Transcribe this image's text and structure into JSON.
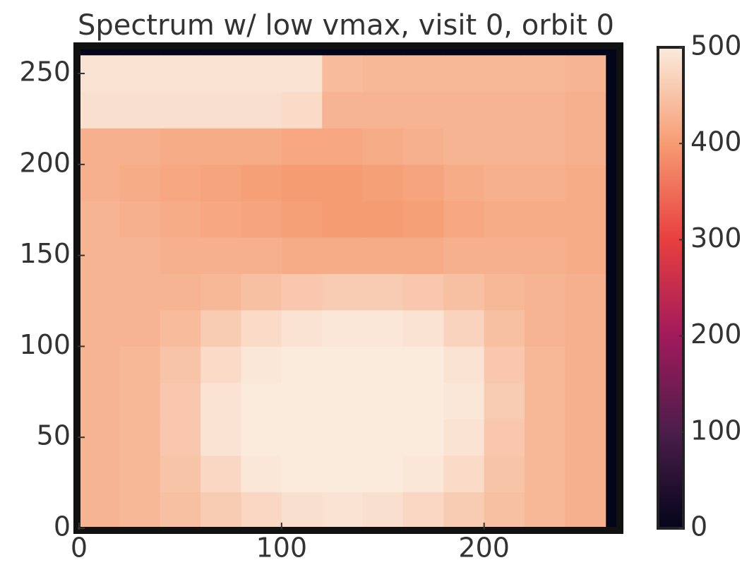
{
  "chart_data": {
    "type": "heatmap",
    "title": "Spectrum w/ low vmax, visit 0, orbit 0",
    "x": [
      10,
      30,
      50,
      70,
      90,
      110,
      130,
      150,
      170,
      190,
      210,
      230,
      250
    ],
    "y": [
      10,
      30,
      50,
      70,
      90,
      110,
      130,
      150,
      170,
      190,
      210,
      230,
      250
    ],
    "values": [
      [
        430,
        435,
        445,
        460,
        475,
        485,
        490,
        485,
        475,
        460,
        445,
        435,
        425
      ],
      [
        430,
        435,
        450,
        475,
        495,
        500,
        500,
        500,
        495,
        480,
        450,
        435,
        425
      ],
      [
        430,
        435,
        455,
        490,
        500,
        500,
        500,
        500,
        500,
        490,
        455,
        435,
        425
      ],
      [
        430,
        435,
        455,
        490,
        500,
        500,
        500,
        500,
        500,
        495,
        460,
        435,
        425
      ],
      [
        430,
        435,
        450,
        480,
        495,
        500,
        500,
        500,
        500,
        490,
        455,
        435,
        425
      ],
      [
        430,
        430,
        440,
        460,
        480,
        490,
        495,
        495,
        490,
        470,
        445,
        430,
        425
      ],
      [
        430,
        430,
        430,
        435,
        445,
        455,
        460,
        460,
        455,
        445,
        435,
        430,
        425
      ],
      [
        430,
        430,
        425,
        425,
        425,
        420,
        420,
        420,
        420,
        425,
        425,
        425,
        420
      ],
      [
        430,
        425,
        420,
        415,
        410,
        405,
        400,
        400,
        405,
        415,
        420,
        420,
        420
      ],
      [
        425,
        420,
        415,
        410,
        405,
        400,
        400,
        405,
        410,
        420,
        425,
        425,
        420
      ],
      [
        425,
        425,
        420,
        420,
        420,
        415,
        415,
        420,
        425,
        430,
        430,
        430,
        425
      ],
      [
        485,
        485,
        485,
        485,
        485,
        480,
        430,
        430,
        430,
        430,
        430,
        430,
        425
      ],
      [
        490,
        490,
        490,
        490,
        490,
        490,
        440,
        435,
        435,
        435,
        435,
        435,
        430
      ]
    ],
    "xlim": [
      0,
      266
    ],
    "ylim": [
      0,
      264
    ],
    "xticks": [
      0,
      100,
      200
    ],
    "yticks": [
      0,
      50,
      100,
      150,
      200,
      250
    ],
    "colormap": [
      "#03051a",
      "#4c1d4b",
      "#a11a5b",
      "#e83f3f",
      "#f69c73",
      "#faebdd"
    ],
    "clim": [
      0,
      500
    ],
    "cticks": [
      0,
      100,
      200,
      300,
      400,
      500
    ]
  }
}
